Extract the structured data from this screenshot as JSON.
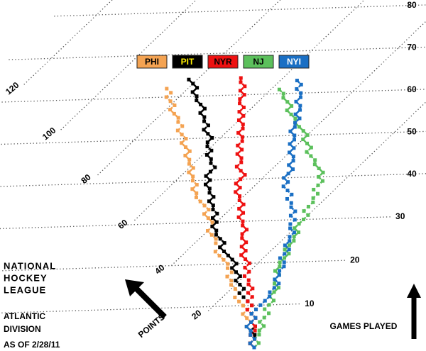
{
  "chart_data": {
    "type": "skewed-line",
    "title": [
      "NATIONAL",
      "HOCKEY",
      "LEAGUE"
    ],
    "subtitle": [
      "ATLANTIC",
      "DIVISION"
    ],
    "date_note": "AS OF 2/28/11",
    "xlabel": "GAMES PLAYED",
    "ylabel": "POINTS",
    "xlim": [
      0,
      80
    ],
    "xticks": [
      10,
      20,
      30,
      40,
      50,
      60,
      70,
      80
    ],
    "ylim": [
      0,
      130
    ],
    "yticks": [
      20,
      40,
      60,
      80,
      100,
      120
    ],
    "grid": true,
    "x": [
      0,
      1,
      2,
      3,
      4,
      5,
      6,
      7,
      8,
      9,
      10,
      11,
      12,
      13,
      14,
      15,
      16,
      17,
      18,
      19,
      20,
      21,
      22,
      23,
      24,
      25,
      26,
      27,
      28,
      29,
      30,
      31,
      32,
      33,
      34,
      35,
      36,
      37,
      38,
      39,
      40,
      41,
      42,
      43,
      44,
      45,
      46,
      47,
      48,
      49,
      50,
      51,
      52,
      53,
      54,
      55,
      56,
      57,
      58,
      59,
      60,
      61,
      62,
      63,
      64
    ],
    "series": [
      {
        "name": "PHI",
        "color": "#f4a352",
        "values": [
          0,
          2,
          2,
          4,
          5,
          7,
          7,
          9,
          11,
          11,
          13,
          15,
          17,
          17,
          19,
          21,
          22,
          24,
          24,
          26,
          27,
          29,
          31,
          33,
          33,
          35,
          36,
          38,
          40,
          40,
          41,
          43,
          45,
          45,
          47,
          49,
          51,
          52,
          54,
          54,
          56,
          57,
          59,
          59,
          61,
          62,
          64,
          64,
          66,
          68,
          68,
          70,
          72,
          72,
          74,
          75,
          77,
          79,
          79,
          81,
          83,
          83,
          85,
          null,
          null
        ]
      },
      {
        "name": "PIT",
        "color": "#000000",
        "values": [
          0,
          2,
          2,
          3,
          5,
          5,
          7,
          7,
          9,
          9,
          11,
          13,
          15,
          17,
          17,
          19,
          21,
          21,
          23,
          25,
          25,
          27,
          29,
          31,
          33,
          33,
          35,
          37,
          38,
          40,
          40,
          42,
          42,
          44,
          45,
          47,
          47,
          49,
          50,
          52,
          52,
          54,
          54,
          54,
          56,
          57,
          59,
          59,
          61,
          62,
          62,
          64,
          66,
          66,
          68,
          69,
          71,
          71,
          73,
          75,
          76,
          78,
          78,
          80,
          82
        ]
      },
      {
        "name": "NYR",
        "color": "#ee1111",
        "values": [
          0,
          2,
          2,
          4,
          4,
          5,
          7,
          7,
          9,
          11,
          11,
          13,
          13,
          15,
          15,
          17,
          18,
          20,
          20,
          22,
          22,
          24,
          26,
          26,
          28,
          28,
          30,
          31,
          31,
          33,
          34,
          36,
          36,
          38,
          38,
          40,
          41,
          43,
          43,
          45,
          45,
          45,
          47,
          49,
          49,
          50,
          52,
          52,
          54,
          54,
          55,
          57,
          57,
          58,
          60,
          60,
          62,
          62,
          64,
          65,
          65,
          67,
          67,
          69,
          70
        ]
      },
      {
        "name": "NJ",
        "color": "#5cc05c",
        "values": [
          0,
          0,
          2,
          2,
          3,
          3,
          5,
          5,
          5,
          7,
          7,
          7,
          9,
          9,
          9,
          11,
          12,
          12,
          14,
          14,
          15,
          15,
          15,
          17,
          17,
          17,
          18,
          18,
          20,
          20,
          20,
          20,
          22,
          22,
          22,
          23,
          23,
          25,
          25,
          25,
          27,
          27,
          29,
          31,
          32,
          34,
          36,
          36,
          38,
          40,
          40,
          42,
          44,
          46,
          47,
          49,
          51,
          51,
          53,
          55,
          56,
          58,
          null,
          null,
          null
        ]
      },
      {
        "name": "NYI",
        "color": "#1a6fc4",
        "values": [
          0,
          2,
          2,
          4,
          5,
          7,
          7,
          7,
          9,
          9,
          9,
          9,
          9,
          10,
          10,
          10,
          12,
          12,
          13,
          13,
          14,
          16,
          16,
          16,
          18,
          18,
          19,
          19,
          21,
          22,
          22,
          24,
          24,
          26,
          27,
          29,
          29,
          31,
          33,
          33,
          35,
          35,
          35,
          37,
          37,
          38,
          40,
          40,
          42,
          42,
          43,
          45,
          45,
          46,
          46,
          48,
          48,
          49,
          51,
          51,
          52,
          54,
          54,
          56,
          null
        ]
      }
    ]
  }
}
